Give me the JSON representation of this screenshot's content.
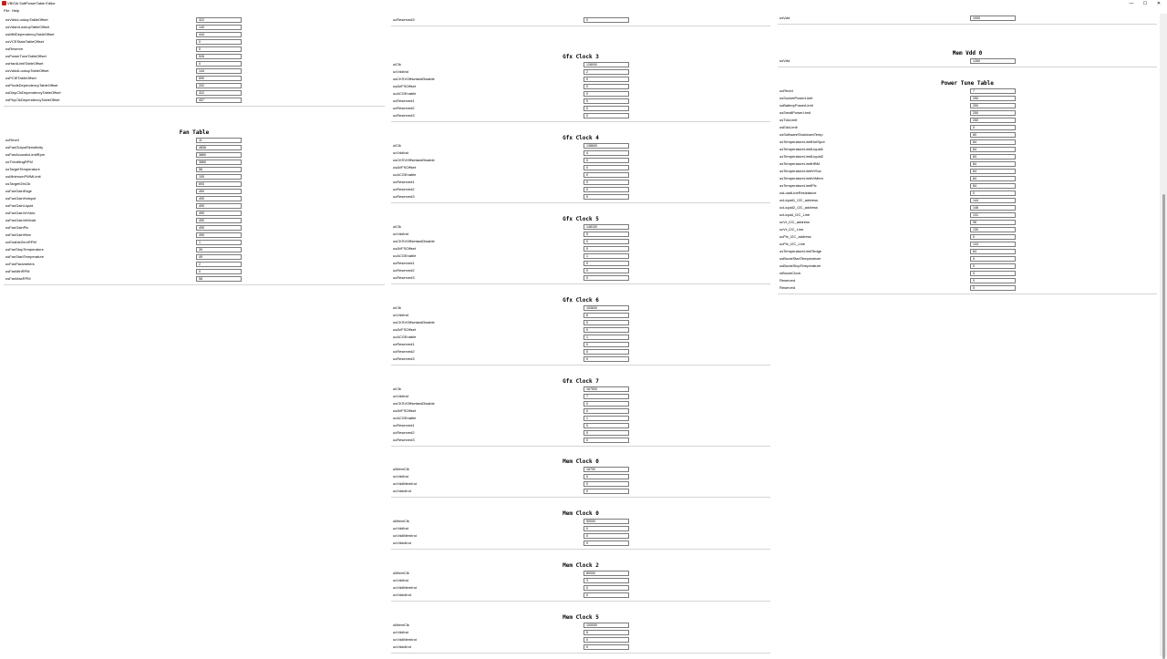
{
  "window": {
    "title": "VBIOA SoftPowerTable Editor",
    "min": "—",
    "max": "☐",
    "close": "✕"
  },
  "menu": [
    "File",
    "Help"
  ],
  "columns": [
    {
      "sections": [
        {
          "title": "",
          "partial": true,
          "rows": [
            [
              "usVddcLookupTableOffset",
              "322"
            ],
            [
              "usVddmLookupTableOffset",
              "140"
            ],
            [
              "usMMDependencyTableOffset",
              "444"
            ],
            [
              "usVCEStateTableOffset",
              "0"
            ],
            [
              "usReserve",
              "0"
            ],
            [
              "usPowerTuneTableOffset",
              "526"
            ],
            [
              "usHardLimitTableOffset",
              "0"
            ],
            [
              "usVddciLookupTableOffset",
              "144"
            ],
            [
              "usPCIETableOffset",
              "690"
            ],
            [
              "usPixclkDependencyTableOffset",
              "202"
            ],
            [
              "usDispClkDependencyTableOffset",
              "322"
            ],
            [
              "usPhyClkDependencyTableOffset",
              "407"
            ]
          ]
        },
        {
          "title": "Fan Table",
          "rows": [
            [
              "ucRevId",
              "11"
            ],
            [
              "usFanOutputSensitivity",
              "4836"
            ],
            [
              "usFanAcousticLimitRpm",
              "3860"
            ],
            [
              "usThrottlingRPM",
              "3860"
            ],
            [
              "usTargetTemperature",
              "56"
            ],
            [
              "usMinimumPWMLimit",
              "100"
            ],
            [
              "usTargetGfxClk",
              "693"
            ],
            [
              "usFanGainEdge",
              "490"
            ],
            [
              "usFanGainHotspot",
              "490"
            ],
            [
              "usFanGainLiquid",
              "490"
            ],
            [
              "usFanGainVrVddc",
              "490"
            ],
            [
              "usFanGainVrMvdd",
              "490"
            ],
            [
              "usFanGainPlx",
              "490"
            ],
            [
              "usFanGainHbm",
              "490"
            ],
            [
              "ucEnableZeroRPM",
              "1"
            ],
            [
              "usFanStopTemperature",
              "39"
            ],
            [
              "usFanStartTemperature",
              "49"
            ],
            [
              "ucFanParameters",
              "2"
            ],
            [
              "usFanMinRPM",
              "0"
            ],
            [
              "usFanMaxRPM",
              "58"
            ]
          ]
        }
      ]
    },
    {
      "sections": [
        {
          "title": "",
          "partial": true,
          "rows": [
            [
              "ucReserved3",
              "0"
            ]
          ]
        },
        {
          "title": "Gfx Clock 3",
          "rows": [
            [
              "ulClk",
              "128000"
            ],
            [
              "ucVddInd",
              "2"
            ],
            [
              "usCKSVOffsetandDisable",
              "0"
            ],
            [
              "usAVFSOffset",
              "0"
            ],
            [
              "ucACGEnable",
              "0"
            ],
            [
              "ucReserved1",
              "0"
            ],
            [
              "ucReserved2",
              "0"
            ],
            [
              "ucReserved3",
              "0"
            ]
          ]
        },
        {
          "title": "Gfx Clock 4",
          "rows": [
            [
              "ulClk",
              "138600"
            ],
            [
              "ucVddInd",
              "4"
            ],
            [
              "usCKSVOffsetandDisable",
              "0"
            ],
            [
              "usAVFSOffset",
              "0"
            ],
            [
              "ucACGEnable",
              "0"
            ],
            [
              "ucReserved1",
              "0"
            ],
            [
              "ucReserved2",
              "0"
            ],
            [
              "ucReserved3",
              "0"
            ]
          ]
        },
        {
          "title": "Gfx Clock 5",
          "rows": [
            [
              "ulClk",
              "148100"
            ],
            [
              "ucVddInd",
              "5"
            ],
            [
              "usCKSVOffsetandDisable",
              "0"
            ],
            [
              "usAVFSOffset",
              "0"
            ],
            [
              "ucACGEnable",
              "1"
            ],
            [
              "ucReserved1",
              "0"
            ],
            [
              "ucReserved2",
              "0"
            ],
            [
              "ucReserved3",
              "0"
            ]
          ]
        },
        {
          "title": "Gfx Clock 6",
          "rows": [
            [
              "ulClk",
              "153600"
            ],
            [
              "ucVddInd",
              "6"
            ],
            [
              "usCKSVOffsetandDisable",
              "0"
            ],
            [
              "usAVFSOffset",
              "0"
            ],
            [
              "ucACGEnable",
              "1"
            ],
            [
              "ucReserved1",
              "0"
            ],
            [
              "ucReserved2",
              "0"
            ],
            [
              "ucReserved3",
              "0"
            ]
          ]
        },
        {
          "title": "Gfx Clock 7",
          "rows": [
            [
              "ulClk",
              "167500"
            ],
            [
              "ucVddInd",
              "7"
            ],
            [
              "usCKSVOffsetandDisable",
              "0"
            ],
            [
              "usAVFSOffset",
              "0"
            ],
            [
              "ucACGEnable",
              "1"
            ],
            [
              "ucReserved1",
              "0"
            ],
            [
              "ucReserved2",
              "0"
            ],
            [
              "ucReserved3",
              "0"
            ]
          ]
        },
        {
          "title": "Mem Clock 0",
          "rows": [
            [
              "ulMemClk",
              "16700"
            ],
            [
              "ucVddInd",
              "0"
            ],
            [
              "ucVddMemInd",
              "0"
            ],
            [
              "ucVddciInd",
              "0"
            ]
          ]
        },
        {
          "title": "Mem Clock 0",
          "rows": [
            [
              "ulMemClk",
              "50000"
            ],
            [
              "ucVddInd",
              "0"
            ],
            [
              "ucVddMemInd",
              "0"
            ],
            [
              "ucVddciInd",
              "0"
            ]
          ]
        },
        {
          "title": "Mem Clock 2",
          "rows": [
            [
              "ulMemClk",
              "80000"
            ],
            [
              "ucVddInd",
              "3"
            ],
            [
              "ucVddMemInd",
              "0"
            ],
            [
              "ucVddciInd",
              "0"
            ]
          ]
        },
        {
          "title": "Mem Clock 5",
          "rows": [
            [
              "ulMemClk",
              "100000"
            ],
            [
              "ucVddInd",
              "5"
            ],
            [
              "ucVddMemInd",
              "0"
            ],
            [
              "ucVddciInd",
              "0"
            ]
          ]
        }
      ]
    },
    {
      "sections": [
        {
          "title": "",
          "partial": true,
          "rows": [
            [
              "usVdd",
              "1000"
            ]
          ]
        },
        {
          "title": "Mem Vdd 0",
          "rows": [
            [
              "usVdd",
              "1350"
            ]
          ]
        },
        {
          "title": "Power Tune Table",
          "rows": [
            [
              "ucRevId",
              "7"
            ],
            [
              "usSocketPowerLimit",
              "250"
            ],
            [
              "usBatteryPowerLimit",
              "250"
            ],
            [
              "usSmallPowerLimit",
              "250"
            ],
            [
              "usTdcLimit",
              "250"
            ],
            [
              "usEdcLimit",
              "0"
            ],
            [
              "usSoftwareShutdownTemp",
              "80"
            ],
            [
              "usTemperatureLimitHotSpot",
              "84"
            ],
            [
              "usTemperatureLimitLiquid1",
              "84"
            ],
            [
              "usTemperatureLimitLiquid2",
              "84"
            ],
            [
              "usTemperatureLimitHBM",
              "84"
            ],
            [
              "usTemperatureLimitVrSoc",
              "84"
            ],
            [
              "usTemperatureLimitVrMem",
              "84"
            ],
            [
              "usTemperatureLimitPlx",
              "84"
            ],
            [
              "usLoadLineResistance",
              "0"
            ],
            [
              "ucLiquid1_I2C_address",
              "144"
            ],
            [
              "ucLiquid2_I2C_address",
              "146"
            ],
            [
              "ucLiquid_I2C_Line",
              "131"
            ],
            [
              "ucVr_I2C_address",
              "96"
            ],
            [
              "ucVr_I2C_Line",
              "130"
            ],
            [
              "ucPlx_I2C_address",
              "0"
            ],
            [
              "ucPlx_I2C_Line",
              "144"
            ],
            [
              "usTemperatureLimitTedge",
              "84"
            ],
            [
              "usBoostStartTemperature",
              "0"
            ],
            [
              "usBoostStopTemperature",
              "0"
            ],
            [
              "ulBoostClock",
              "0"
            ],
            [
              "Reserved",
              "0"
            ],
            [
              "Reserved",
              "0"
            ]
          ]
        }
      ]
    }
  ]
}
